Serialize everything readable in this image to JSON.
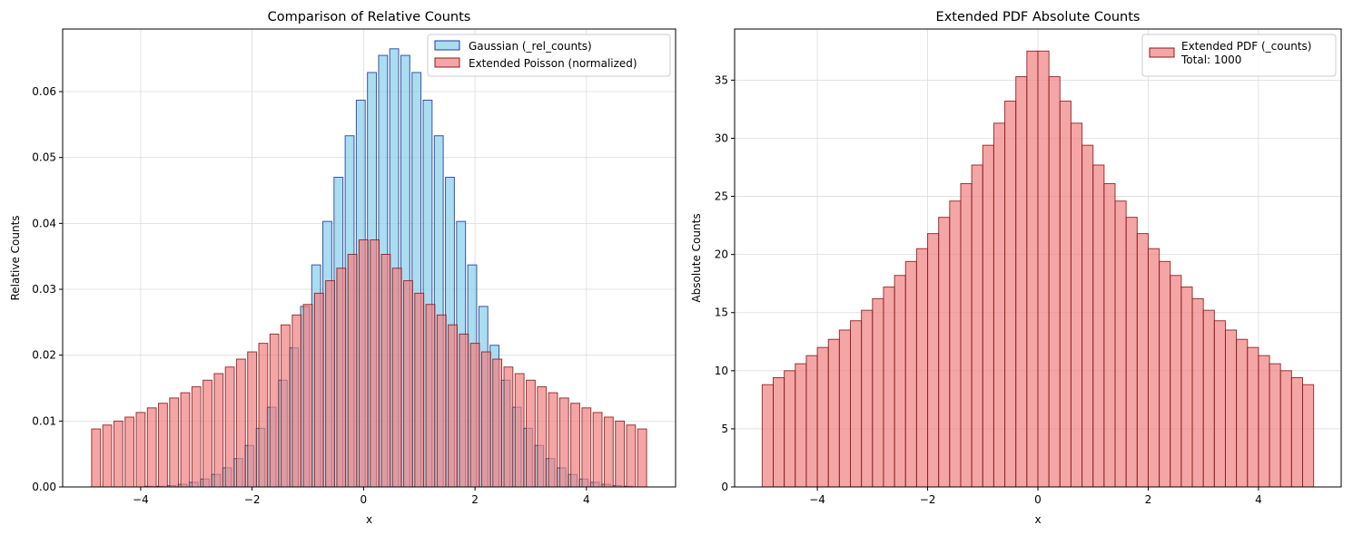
{
  "chart_data": [
    {
      "type": "bar",
      "title": "Comparison of Relative Counts",
      "xlabel": "x",
      "ylabel": "Relative Counts",
      "xlim": [
        -5.4,
        5.6
      ],
      "ylim": [
        0,
        0.0695
      ],
      "xticks": [
        -4,
        -2,
        0,
        2,
        4
      ],
      "xtick_labels": [
        "−4",
        "−2",
        "0",
        "2",
        "4"
      ],
      "yticks": [
        0,
        0.01,
        0.02,
        0.03,
        0.04,
        0.05,
        0.06
      ],
      "ytick_labels": [
        "0.00",
        "0.01",
        "0.02",
        "0.03",
        "0.04",
        "0.05",
        "0.06"
      ],
      "grid": true,
      "legend_position": "top-right",
      "bar_width": 0.16,
      "series": [
        {
          "name": "Gaussian (_rel_counts)",
          "fill": "#87ceeb",
          "edge": "#1f3a93",
          "x": [
            -4.85,
            -4.65,
            -4.45,
            -4.25,
            -4.05,
            -3.85,
            -3.65,
            -3.45,
            -3.25,
            -3.05,
            -2.85,
            -2.65,
            -2.45,
            -2.25,
            -2.05,
            -1.85,
            -1.65,
            -1.45,
            -1.25,
            -1.05,
            -0.85,
            -0.65,
            -0.45,
            -0.25,
            -0.05,
            0.15,
            0.35,
            0.55,
            0.75,
            0.95,
            1.15,
            1.35,
            1.55,
            1.75,
            1.95,
            2.15,
            2.35,
            2.55,
            2.75,
            2.95,
            3.15,
            3.35,
            3.55,
            3.75,
            3.95,
            4.15,
            4.35,
            4.55,
            4.75,
            4.95
          ],
          "values": [
            0.0,
            0.0,
            0.0,
            0.0,
            0.0,
            0.0001,
            0.0001,
            0.0002,
            0.0004,
            0.0007,
            0.0012,
            0.0019,
            0.0029,
            0.0043,
            0.0063,
            0.0089,
            0.0121,
            0.0162,
            0.0211,
            0.0274,
            0.0337,
            0.0403,
            0.047,
            0.0533,
            0.0587,
            0.0629,
            0.0655,
            0.0665,
            0.0655,
            0.0629,
            0.0587,
            0.0533,
            0.047,
            0.0403,
            0.0337,
            0.0274,
            0.0215,
            0.0162,
            0.0121,
            0.0089,
            0.0063,
            0.0043,
            0.0029,
            0.0019,
            0.0012,
            0.0007,
            0.0004,
            0.0002,
            0.0001,
            0.0
          ]
        },
        {
          "name": "Extended Poisson (normalized)",
          "fill": "#f08080",
          "edge": "#8b1a1a",
          "x": [
            -4.8,
            -4.6,
            -4.4,
            -4.2,
            -4.0,
            -3.8,
            -3.6,
            -3.4,
            -3.2,
            -3.0,
            -2.8,
            -2.6,
            -2.4,
            -2.2,
            -2.0,
            -1.8,
            -1.6,
            -1.4,
            -1.2,
            -1.0,
            -0.8,
            -0.6,
            -0.4,
            -0.2,
            0.0,
            0.2,
            0.4,
            0.6,
            0.8,
            1.0,
            1.2,
            1.4,
            1.6,
            1.8,
            2.0,
            2.2,
            2.4,
            2.6,
            2.8,
            3.0,
            3.2,
            3.4,
            3.6,
            3.8,
            4.0,
            4.2,
            4.4,
            4.6,
            4.8,
            5.0
          ],
          "values": [
            0.0088,
            0.0094,
            0.01,
            0.0106,
            0.0113,
            0.012,
            0.0127,
            0.0135,
            0.0143,
            0.0152,
            0.0162,
            0.0172,
            0.0182,
            0.0194,
            0.0205,
            0.0218,
            0.0232,
            0.0246,
            0.0261,
            0.0277,
            0.0294,
            0.0313,
            0.0332,
            0.0353,
            0.0375,
            0.0375,
            0.0353,
            0.0332,
            0.0313,
            0.0294,
            0.0277,
            0.0261,
            0.0246,
            0.0232,
            0.0218,
            0.0205,
            0.0194,
            0.0182,
            0.0172,
            0.0162,
            0.0152,
            0.0143,
            0.0135,
            0.0127,
            0.012,
            0.0113,
            0.0106,
            0.01,
            0.0094,
            0.0088
          ]
        }
      ]
    },
    {
      "type": "bar",
      "title": "Extended PDF Absolute Counts",
      "xlabel": "x",
      "ylabel": "Absolute Counts",
      "xlim": [
        -5.5,
        5.5
      ],
      "ylim": [
        0,
        39.4
      ],
      "xticks": [
        -4,
        -2,
        0,
        2,
        4
      ],
      "xtick_labels": [
        "−4",
        "−2",
        "0",
        "2",
        "4"
      ],
      "yticks": [
        0,
        5,
        10,
        15,
        20,
        25,
        30,
        35
      ],
      "ytick_labels": [
        "0",
        "5",
        "10",
        "15",
        "20",
        "25",
        "30",
        "35"
      ],
      "grid": true,
      "legend_position": "top-right",
      "bar_width": 0.2,
      "series": [
        {
          "name": "Extended PDF (_counts)",
          "legend_extra": "Total: 1000",
          "fill": "#f08080",
          "edge": "#8b1a1a",
          "x": [
            -4.9,
            -4.7,
            -4.5,
            -4.3,
            -4.1,
            -3.9,
            -3.7,
            -3.5,
            -3.3,
            -3.1,
            -2.9,
            -2.7,
            -2.5,
            -2.3,
            -2.1,
            -1.9,
            -1.7,
            -1.5,
            -1.3,
            -1.1,
            -0.9,
            -0.7,
            -0.5,
            -0.3,
            -0.1,
            0.1,
            0.3,
            0.5,
            0.7,
            0.9,
            1.1,
            1.3,
            1.5,
            1.7,
            1.9,
            2.1,
            2.3,
            2.5,
            2.7,
            2.9,
            3.1,
            3.3,
            3.5,
            3.7,
            3.9,
            4.1,
            4.3,
            4.5,
            4.7,
            4.9
          ],
          "values": [
            8.8,
            9.4,
            10.0,
            10.6,
            11.3,
            12.0,
            12.7,
            13.5,
            14.3,
            15.2,
            16.2,
            17.2,
            18.2,
            19.4,
            20.5,
            21.8,
            23.2,
            24.6,
            26.1,
            27.7,
            29.4,
            31.3,
            33.2,
            35.3,
            37.5,
            37.5,
            35.3,
            33.2,
            31.3,
            29.4,
            27.7,
            26.1,
            24.6,
            23.2,
            21.8,
            20.5,
            19.4,
            18.2,
            17.2,
            16.2,
            15.2,
            14.3,
            13.5,
            12.7,
            12.0,
            11.3,
            10.6,
            10.0,
            9.4,
            8.8
          ]
        }
      ]
    }
  ]
}
